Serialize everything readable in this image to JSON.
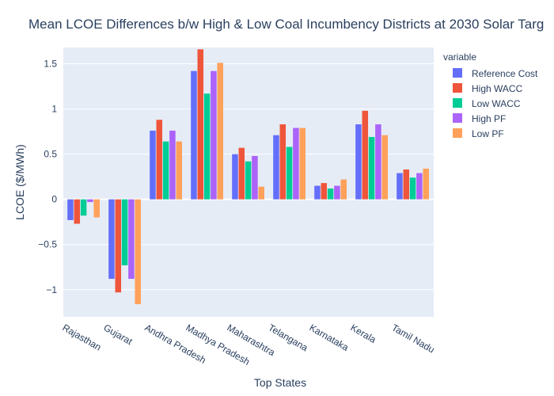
{
  "chart_data": {
    "type": "bar",
    "title": "Mean LCOE Differences b/w High & Low Coal Incumbency Districts at 2030 Solar Targ",
    "xlabel": "Top States",
    "ylabel": "LCOE ($/MWh)",
    "legend_title": "variable",
    "legend_position": "right",
    "grid": true,
    "ylim": [
      -1.3,
      1.68
    ],
    "yticks": [
      -1,
      -0.5,
      0,
      0.5,
      1,
      1.5
    ],
    "ytick_labels": [
      "−1",
      "−0.5",
      "0",
      "0.5",
      "1",
      "1.5"
    ],
    "categories": [
      "Rajasthan",
      "Gujarat",
      "Andhra Pradesh",
      "Madhya Pradesh",
      "Maharashtra",
      "Telangana",
      "Karnataka",
      "Kerala",
      "Tamil Nadu"
    ],
    "series": [
      {
        "name": "Reference Cost",
        "color": "#636efa",
        "values": [
          -0.23,
          -0.88,
          0.76,
          1.42,
          0.5,
          0.71,
          0.15,
          0.83,
          0.29
        ]
      },
      {
        "name": "High WACC",
        "color": "#ef553b",
        "values": [
          -0.27,
          -1.03,
          0.88,
          1.66,
          0.57,
          0.83,
          0.18,
          0.98,
          0.33
        ]
      },
      {
        "name": "Low WACC",
        "color": "#00cc96",
        "values": [
          -0.18,
          -0.73,
          0.64,
          1.17,
          0.42,
          0.58,
          0.12,
          0.69,
          0.24
        ]
      },
      {
        "name": "High PF",
        "color": "#ab63fa",
        "values": [
          -0.03,
          -0.88,
          0.76,
          1.42,
          0.48,
          0.79,
          0.15,
          0.83,
          0.29
        ]
      },
      {
        "name": "Low PF",
        "color": "#ffa15a",
        "values": [
          -0.2,
          -1.16,
          0.64,
          1.51,
          0.14,
          0.79,
          0.22,
          0.71,
          0.34
        ]
      }
    ]
  }
}
